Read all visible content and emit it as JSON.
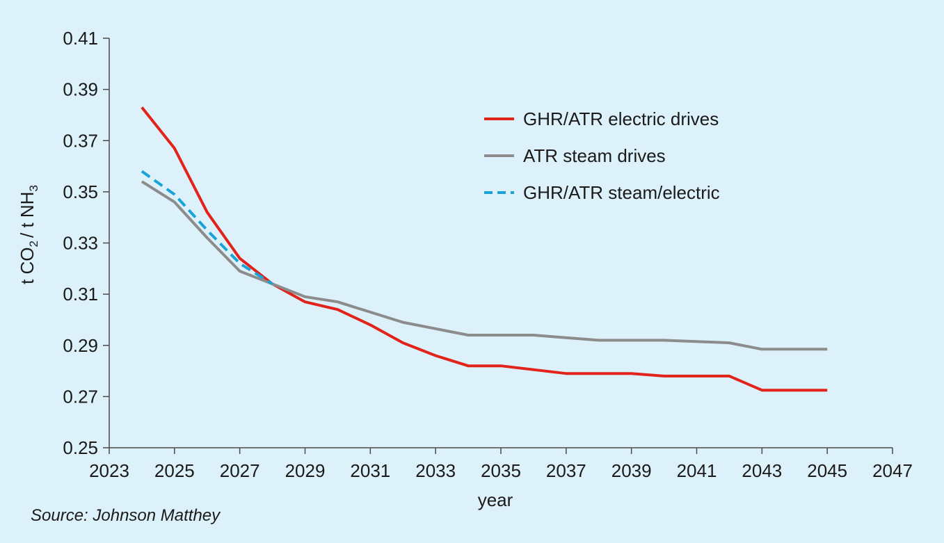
{
  "chart_data": {
    "type": "line",
    "xlabel": "year",
    "ylabel": {
      "pre": "t CO",
      "sub1": "2",
      "mid": "/ t NH",
      "sub2": "3"
    },
    "xlim": [
      2023,
      2047
    ],
    "ylim": [
      0.25,
      0.41
    ],
    "x_ticks": [
      2023,
      2025,
      2027,
      2029,
      2031,
      2033,
      2035,
      2037,
      2039,
      2041,
      2043,
      2045,
      2047
    ],
    "y_ticks": [
      0.25,
      0.27,
      0.29,
      0.31,
      0.33,
      0.35,
      0.37,
      0.39,
      0.41
    ],
    "legend_position": "top-right",
    "series": [
      {
        "name": "GHR/ATR electric drives",
        "color": "#e2231a",
        "dash": "solid",
        "x": [
          2024,
          2025,
          2026,
          2027,
          2028,
          2029,
          2030,
          2031,
          2032,
          2033,
          2034,
          2035,
          2036,
          2037,
          2038,
          2039,
          2040,
          2041,
          2042,
          2043,
          2044,
          2045
        ],
        "y": [
          0.383,
          0.367,
          0.342,
          0.324,
          0.314,
          0.307,
          0.304,
          0.298,
          0.291,
          0.286,
          0.282,
          0.282,
          0.2805,
          0.279,
          0.279,
          0.279,
          0.278,
          0.278,
          0.278,
          0.2725,
          0.2725,
          0.2725
        ]
      },
      {
        "name": "ATR steam drives",
        "color": "#8c8c8c",
        "dash": "solid",
        "x": [
          2024,
          2025,
          2026,
          2027,
          2028,
          2029,
          2030,
          2031,
          2032,
          2033,
          2034,
          2035,
          2036,
          2037,
          2038,
          2039,
          2040,
          2041,
          2042,
          2043,
          2044,
          2045
        ],
        "y": [
          0.354,
          0.346,
          0.332,
          0.319,
          0.314,
          0.309,
          0.307,
          0.303,
          0.299,
          0.2965,
          0.294,
          0.294,
          0.294,
          0.293,
          0.292,
          0.292,
          0.292,
          0.2915,
          0.291,
          0.2885,
          0.2885,
          0.2885
        ]
      },
      {
        "name": "GHR/ATR steam/electric",
        "color": "#1aa3d6",
        "dash": "dashed",
        "x": [
          2024,
          2025,
          2026,
          2027,
          2028
        ],
        "y": [
          0.358,
          0.349,
          0.335,
          0.322,
          0.314
        ]
      }
    ],
    "source": "Source: Johnson Matthey"
  }
}
